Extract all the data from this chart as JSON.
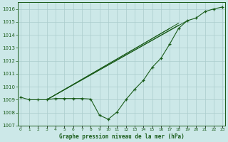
{
  "title": "Graphe pression niveau de la mer (hPa)",
  "background_color": "#cce8e8",
  "grid_color": "#aacccc",
  "line_color": "#1a5c1a",
  "ylim": [
    1007,
    1016.5
  ],
  "xlim": [
    0,
    23
  ],
  "yticks": [
    1007,
    1008,
    1009,
    1010,
    1011,
    1012,
    1013,
    1014,
    1015,
    1016
  ],
  "main_x": [
    0,
    1,
    2,
    3,
    4,
    5,
    6,
    7,
    8,
    9,
    10,
    11,
    12,
    13,
    14,
    15,
    16,
    17,
    18,
    19,
    20,
    21,
    22,
    23
  ],
  "main_y": [
    1009.2,
    1009.0,
    1009.0,
    1009.0,
    1009.1,
    1009.1,
    1009.1,
    1009.1,
    1009.05,
    1007.8,
    1007.5,
    1008.05,
    1009.0,
    1009.8,
    1010.5,
    1011.5,
    1012.2,
    1013.3,
    1014.5,
    1015.1,
    1015.3,
    1015.8,
    1016.0,
    1016.15
  ],
  "tri_lines": [
    {
      "x": [
        3,
        17
      ],
      "y": [
        1009.0,
        1014.5
      ]
    },
    {
      "x": [
        3,
        18
      ],
      "y": [
        1009.0,
        1014.75
      ]
    },
    {
      "x": [
        3,
        18
      ],
      "y": [
        1009.0,
        1014.9
      ]
    },
    {
      "x": [
        3,
        19
      ],
      "y": [
        1009.0,
        1015.1
      ]
    }
  ]
}
